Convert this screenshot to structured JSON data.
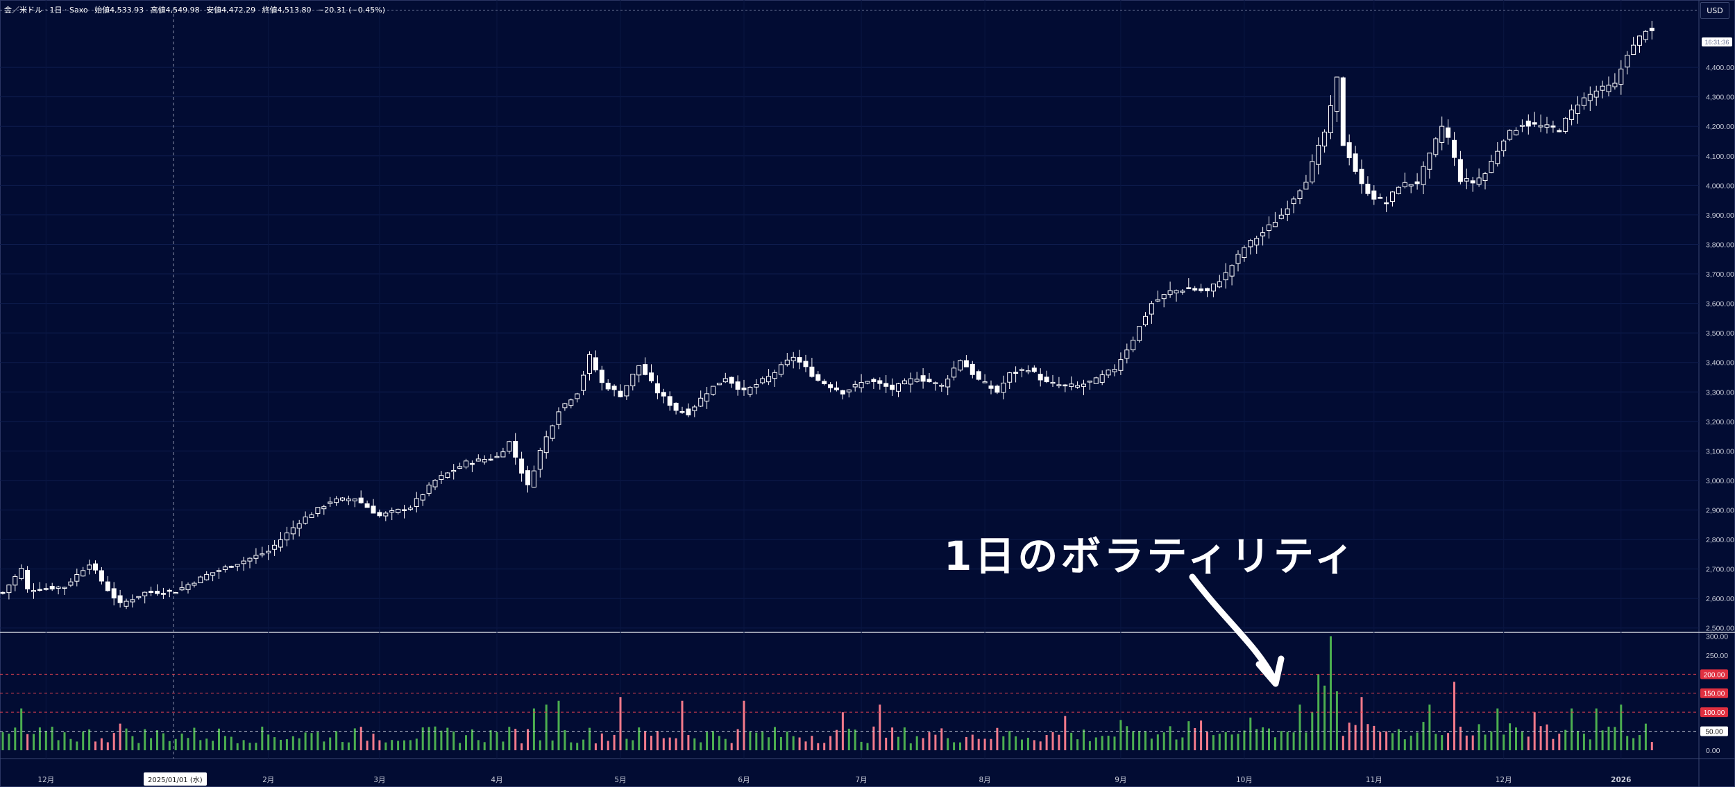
{
  "header": {
    "symbol": "金／米ドル · 1日 · Saxo",
    "open": "始値4,533.93",
    "high": "高値4,549.98",
    "low": "安値4,472.29",
    "close": "終値4,513.80",
    "change": "−20.31 (−0.45%)"
  },
  "currency_button": "USD",
  "price_tag": "16:31:36",
  "crosshair_date": "2025/01/01 (水)",
  "annotation_text": "1日のボラティリティ",
  "colors": {
    "background": "#020c33",
    "candle": "#ffffff",
    "vol_up": "#4caf50",
    "vol_down": "#f47a8b",
    "ref_line": "#e04050",
    "ref_bg": "#e03040"
  },
  "chart_data": [
    {
      "type": "candlestick",
      "title": "金／米ドル 1日",
      "y_ticks": [
        "2,500.00",
        "2,600.00",
        "2,700.00",
        "2,800.00",
        "2,900.00",
        "3,000.00",
        "3,100.00",
        "3,200.00",
        "3,300.00",
        "3,400.00",
        "3,500.00",
        "3,600.00",
        "3,700.00",
        "3,800.00",
        "3,900.00",
        "4,000.00",
        "4,100.00",
        "4,200.00",
        "4,300.00",
        "4,400.00"
      ],
      "ylim": [
        2490,
        4600
      ],
      "x_ticks": [
        "12月",
        "2月",
        "3月",
        "4月",
        "5月",
        "6月",
        "7月",
        "8月",
        "9月",
        "10月",
        "11月",
        "12月",
        "2026"
      ],
      "x_tick_index": [
        7,
        43,
        61,
        80,
        100,
        120,
        139,
        159,
        181,
        201,
        222,
        243,
        262
      ],
      "close_anchors": [
        [
          0,
          2620
        ],
        [
          3,
          2700
        ],
        [
          4,
          2630
        ],
        [
          10,
          2640
        ],
        [
          14,
          2720
        ],
        [
          17,
          2630
        ],
        [
          19,
          2580
        ],
        [
          23,
          2620
        ],
        [
          28,
          2625
        ],
        [
          33,
          2680
        ],
        [
          38,
          2720
        ],
        [
          43,
          2760
        ],
        [
          48,
          2860
        ],
        [
          53,
          2930
        ],
        [
          57,
          2940
        ],
        [
          61,
          2880
        ],
        [
          66,
          2910
        ],
        [
          70,
          3000
        ],
        [
          75,
          3060
        ],
        [
          80,
          3080
        ],
        [
          82,
          3130
        ],
        [
          85,
          2980
        ],
        [
          87,
          3100
        ],
        [
          90,
          3240
        ],
        [
          93,
          3300
        ],
        [
          95,
          3420
        ],
        [
          97,
          3330
        ],
        [
          100,
          3290
        ],
        [
          103,
          3390
        ],
        [
          106,
          3300
        ],
        [
          109,
          3240
        ],
        [
          111,
          3230
        ],
        [
          114,
          3300
        ],
        [
          117,
          3350
        ],
        [
          120,
          3300
        ],
        [
          124,
          3350
        ],
        [
          128,
          3420
        ],
        [
          132,
          3340
        ],
        [
          136,
          3300
        ],
        [
          140,
          3340
        ],
        [
          144,
          3310
        ],
        [
          148,
          3350
        ],
        [
          152,
          3320
        ],
        [
          155,
          3410
        ],
        [
          158,
          3340
        ],
        [
          161,
          3300
        ],
        [
          163,
          3360
        ],
        [
          166,
          3380
        ],
        [
          169,
          3330
        ],
        [
          172,
          3320
        ],
        [
          174,
          3320
        ],
        [
          177,
          3340
        ],
        [
          180,
          3380
        ],
        [
          183,
          3480
        ],
        [
          186,
          3600
        ],
        [
          189,
          3640
        ],
        [
          192,
          3650
        ],
        [
          195,
          3640
        ],
        [
          198,
          3700
        ],
        [
          201,
          3790
        ],
        [
          204,
          3840
        ],
        [
          207,
          3900
        ],
        [
          209,
          3960
        ],
        [
          211,
          4020
        ],
        [
          214,
          4180
        ],
        [
          215,
          4260
        ],
        [
          216,
          4360
        ],
        [
          217,
          4140
        ],
        [
          218,
          4100
        ],
        [
          220,
          4000
        ],
        [
          222,
          3960
        ],
        [
          224,
          3940
        ],
        [
          226,
          4000
        ],
        [
          229,
          4010
        ],
        [
          231,
          4100
        ],
        [
          233,
          4200
        ],
        [
          234,
          4160
        ],
        [
          236,
          4020
        ],
        [
          238,
          4010
        ],
        [
          240,
          4040
        ],
        [
          243,
          4160
        ],
        [
          246,
          4210
        ],
        [
          249,
          4200
        ],
        [
          252,
          4190
        ],
        [
          255,
          4280
        ],
        [
          258,
          4320
        ],
        [
          261,
          4340
        ],
        [
          263,
          4450
        ],
        [
          264,
          4470
        ],
        [
          266,
          4530
        ],
        [
          267,
          4513.8
        ]
      ],
      "candle_count": 268
    },
    {
      "type": "bar",
      "title": "1日のボラティリティ",
      "y_ticks": [
        "0.00",
        "50.00",
        "100.00",
        "150.00",
        "200.00",
        "250.00",
        "300.00"
      ],
      "ylim": [
        0,
        310
      ],
      "reference_lines": [
        "200.00",
        "150.00",
        "100.00",
        "50.00"
      ],
      "highlight": [
        [
          3,
          110
        ],
        [
          19,
          70
        ],
        [
          86,
          110
        ],
        [
          88,
          120
        ],
        [
          90,
          130
        ],
        [
          100,
          140
        ],
        [
          110,
          130
        ],
        [
          120,
          130
        ],
        [
          136,
          100
        ],
        [
          142,
          120
        ],
        [
          172,
          90
        ],
        [
          210,
          120
        ],
        [
          212,
          100
        ],
        [
          213,
          200
        ],
        [
          214,
          170
        ],
        [
          215,
          300
        ],
        [
          216,
          155
        ],
        [
          220,
          140
        ],
        [
          231,
          120
        ],
        [
          235,
          180
        ],
        [
          242,
          110
        ],
        [
          248,
          100
        ],
        [
          254,
          110
        ],
        [
          258,
          110
        ],
        [
          262,
          120
        ]
      ]
    }
  ]
}
